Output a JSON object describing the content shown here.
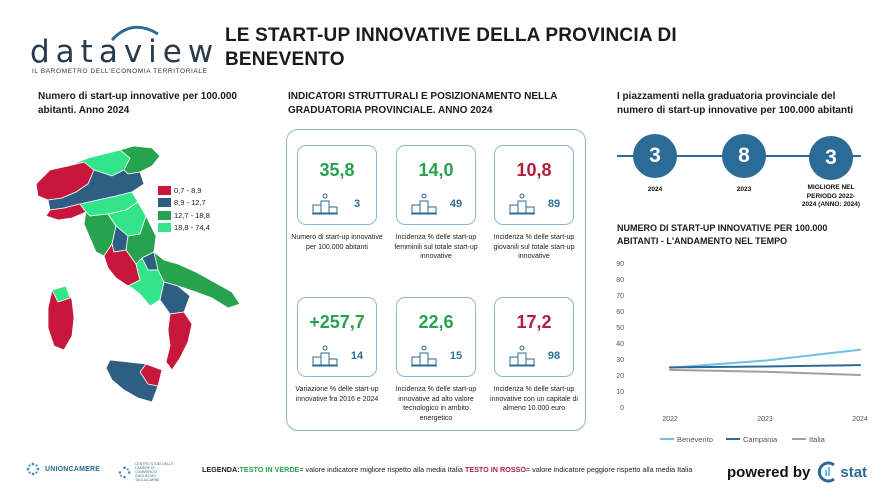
{
  "brand": {
    "logo_text": "dataview",
    "logo_subtitle": "IL BAROMETRO DELL'ECONOMIA TERRITORIALE",
    "accent_color": "#2b6b96"
  },
  "title": "LE START-UP INNOVATIVE DELLA PROVINCIA DI BENEVENTO",
  "map_section": {
    "title": "Numero di start-up innovative per 100.000 abitanti. Anno 2024",
    "legend": [
      {
        "label": "0,7 - 8,9",
        "color": "#c8173d"
      },
      {
        "label": "8,9 - 12,7",
        "color": "#2e5f83"
      },
      {
        "label": "12,7 - 18,8",
        "color": "#27a24e"
      },
      {
        "label": "18,8 - 74,4",
        "color": "#33e58a"
      }
    ]
  },
  "indicators": {
    "title": "INDICATORI STRUTTURALI E POSIZIONAMENTO NELLA GRADUATORIA PROVINCIALE. ANNO 2024",
    "cards": [
      {
        "value": "35,8",
        "rank": "3",
        "status": "green",
        "desc": "Numero di start-up innovative per 100.000 abitanti"
      },
      {
        "value": "14,0",
        "rank": "49",
        "status": "green",
        "desc": "Incidenza % delle start-up femminili sul totale start-up innovative"
      },
      {
        "value": "10,8",
        "rank": "89",
        "status": "red",
        "desc": "Incidenza % delle start-up giovanili sul totale start-up innovative"
      },
      {
        "value": "+257,7",
        "rank": "14",
        "status": "green",
        "desc": "Variazione % delle start-up innovative fra 2016 e 2024"
      },
      {
        "value": "22,6",
        "rank": "15",
        "status": "green",
        "desc": "Incidenza % delle start-up innovative ad alto valore tecnologico in ambito energetico"
      },
      {
        "value": "17,2",
        "rank": "98",
        "status": "red",
        "desc": "Incidenza % delle start-up innovative con un capitale di almeno 10.000 euro"
      }
    ]
  },
  "ranking": {
    "title": "I piazzamenti nella graduatoria provinciale del numero di start-up innovative per 100.000 abitanti",
    "items": [
      {
        "value": "3",
        "label": "2024"
      },
      {
        "value": "8",
        "label": "2023"
      },
      {
        "value": "3",
        "label": "MIGLIORE NEL PERIODO 2022-2024 (ANNO: 2024)"
      }
    ]
  },
  "chart_data": {
    "type": "line",
    "title": "NUMERO DI START-UP INNOVATIVE PER 100.000 ABITANTI - L'ANDAMENTO NEL TEMPO",
    "x": [
      "2022",
      "2023",
      "2024"
    ],
    "yticks": [
      "0",
      "10",
      "20",
      "30",
      "40",
      "50",
      "60",
      "70",
      "80",
      "90"
    ],
    "ylim": [
      0,
      90
    ],
    "series": [
      {
        "name": "Benevento",
        "values": [
          24.5,
          29.0,
          35.8
        ],
        "color": "#6cc0ea"
      },
      {
        "name": "Campania",
        "values": [
          24.8,
          25.3,
          26.2
        ],
        "color": "#2b6b96"
      },
      {
        "name": "Italia",
        "values": [
          23.2,
          22.0,
          20.0
        ],
        "color": "#a0a0a0"
      }
    ],
    "legend_position": "bottom"
  },
  "footer": {
    "unioncamere": "UNIONCAMERE",
    "cc_text": "CENTRO STUDI DELLE CAMERE DI COMMERCIO GUGLIELMO TAGLIACARNE",
    "legend_label": "LEGENDA:",
    "legend_green": "TESTO IN VERDE",
    "legend_green_desc": "= valore indicatore migliore rispetto alla media Italia",
    "legend_red": "TESTO IN ROSSO",
    "legend_red_desc": "= valore indicatore peggiore rispetto alla media Italia",
    "powered_by": "powered by",
    "stat": "stat"
  }
}
